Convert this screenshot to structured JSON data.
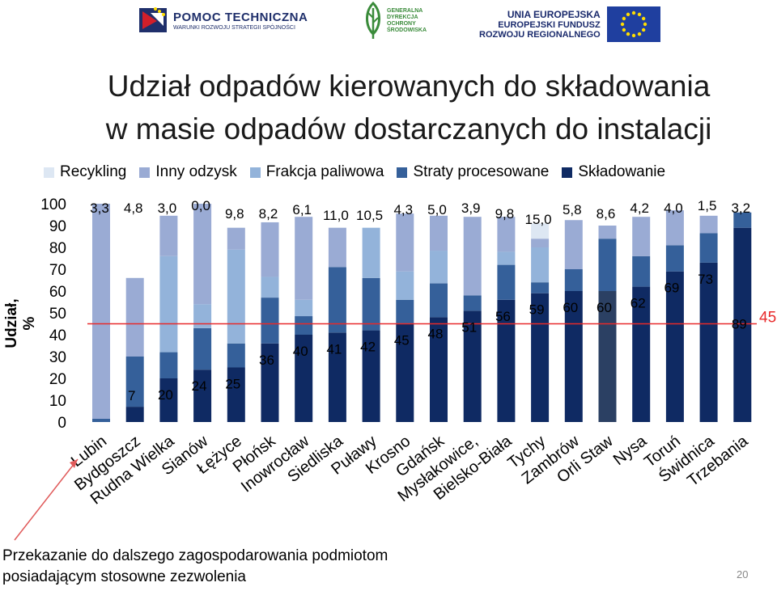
{
  "logos": {
    "pomoc_title": "POMOC TECHNICZNA",
    "pomoc_subtitle": "WARUNKI ROZWOJU STRATEGII SPÓJNOŚCI",
    "gdos_lines": [
      "GENERALNA",
      "DYREKCJA",
      "OCHRONY",
      "ŚRODOWISKA"
    ],
    "ue_line1": "UNIA EUROPEJSKA",
    "ue_line2": "EUROPEJSKI FUNDUSZ",
    "ue_line3": "ROZWOJU REGIONALNEGO",
    "colors": {
      "pomoc_blue": "#1f2f6b",
      "pomoc_red": "#d21f2a",
      "gdos_green": "#3a8b3a",
      "eu_blue": "#1f3f9f",
      "eu_star": "#ffdd00"
    }
  },
  "title_line1": "Udział odpadów kierowanych do składowania",
  "title_line2": "w masie  odpadów dostarczanych do instalacji",
  "footer_line1": "Przekazanie do dalszego zagospodarowania podmiotom",
  "footer_line2": "posiadającym stosowne zezwolenia",
  "page_number": "20",
  "chart_data": {
    "type": "bar",
    "stacked": true,
    "ylabel": "Udział, %",
    "ylim": [
      0,
      100
    ],
    "yticks": [
      0,
      10,
      20,
      30,
      40,
      50,
      60,
      70,
      80,
      90,
      100
    ],
    "legend_position": "top",
    "grid": false,
    "categories": [
      "Lubin",
      "Bydgoszcz",
      "Rudna Wielka",
      "Sianów",
      "Łężyce",
      "Płońsk",
      "Inowrocław",
      "Siedliska",
      "Puławy",
      "Krosno",
      "Gdańsk",
      "Mysłakowice,",
      "Bielsko-Biała",
      "Tychy",
      "Zambrów",
      "Orli Staw",
      "Nysa",
      "Toruń",
      "Świdnica",
      "Trzebania"
    ],
    "series": [
      {
        "name": "Składowanie",
        "color": "#0f2a63",
        "values": [
          0,
          7,
          20,
          24,
          25,
          36,
          40,
          41,
          42,
          45,
          48,
          51,
          56,
          59,
          60,
          60,
          62,
          69,
          73,
          89
        ]
      },
      {
        "name": "Straty procesowane",
        "color": "#35609a",
        "values": [
          1.5,
          23,
          12,
          19,
          11,
          21,
          8.5,
          30,
          24,
          11,
          15.5,
          7,
          16,
          5,
          10,
          24,
          14,
          12,
          13.5,
          7
        ]
      },
      {
        "name": "Frakcja paliwowa",
        "color": "#93b3da",
        "values": [
          0,
          0,
          44,
          11,
          43,
          9.5,
          7.5,
          0,
          23,
          13,
          15,
          0,
          6,
          16,
          0,
          0,
          0,
          0,
          0,
          0
        ]
      },
      {
        "name": "Inny odzysk",
        "color": "#9aabd4",
        "values": [
          98.5,
          36,
          18.5,
          46,
          10,
          25,
          38,
          18,
          0,
          26.5,
          16,
          36,
          16,
          4,
          22.5,
          6,
          18,
          16,
          8,
          0
        ]
      },
      {
        "name": "Recykling",
        "color": "#dde7f3",
        "values": [
          0,
          0,
          0,
          0,
          0,
          0,
          0,
          0,
          0,
          0,
          0,
          0,
          0,
          7,
          0,
          0,
          0,
          0,
          0,
          0
        ]
      }
    ],
    "reference_line": {
      "value": 45,
      "label": "45",
      "color": "#e8292a"
    },
    "top_labels": [
      "3,3",
      "4,8",
      "3,0",
      "0,0",
      "9,8",
      "8,2",
      "6,1",
      "11,0",
      "10,5",
      "4,3",
      "5,0",
      "3,9",
      "9,8",
      "15,0",
      "5,8",
      "8,6",
      "4,2",
      "4,0",
      "1,5",
      "3,2"
    ],
    "bottom_labels": [
      "",
      "7",
      "20",
      "24",
      "25",
      "36",
      "40",
      "41",
      "42",
      "45",
      "48",
      "51",
      "56",
      "59",
      "60",
      "60",
      "62",
      "69",
      "73",
      "89"
    ],
    "highlight_bar": {
      "category": "Orli Staw",
      "color": "#2b4063"
    },
    "annotation_arrow_color": "#e05a5a"
  }
}
